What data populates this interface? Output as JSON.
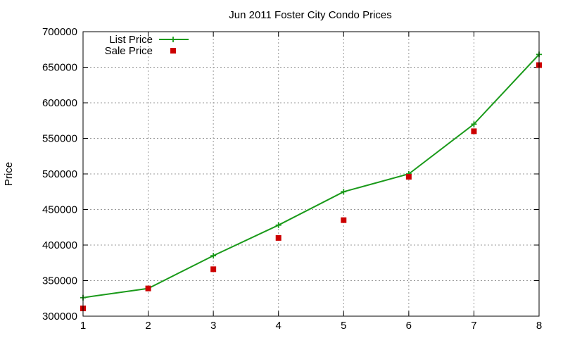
{
  "chart_data": {
    "type": "line",
    "title": "Jun 2011 Foster City Condo Prices",
    "xlabel": "",
    "ylabel": "Price",
    "x": [
      1,
      2,
      3,
      4,
      5,
      6,
      7,
      8
    ],
    "xlim": [
      1,
      8
    ],
    "ylim": [
      300000,
      700000
    ],
    "xticks": [
      1,
      2,
      3,
      4,
      5,
      6,
      7,
      8
    ],
    "yticks": [
      300000,
      350000,
      400000,
      450000,
      500000,
      550000,
      600000,
      650000,
      700000
    ],
    "grid": true,
    "legend_position": "top-left",
    "series": [
      {
        "name": "List Price",
        "style": "line-with-plus-markers",
        "color": "#1a9a1a",
        "values": [
          326000,
          339000,
          385000,
          428000,
          475000,
          500000,
          570000,
          668000
        ]
      },
      {
        "name": "Sale Price",
        "style": "square-markers",
        "color": "#cc0000",
        "values": [
          311000,
          339000,
          366000,
          410000,
          435000,
          496000,
          560000,
          653000
        ]
      }
    ]
  }
}
